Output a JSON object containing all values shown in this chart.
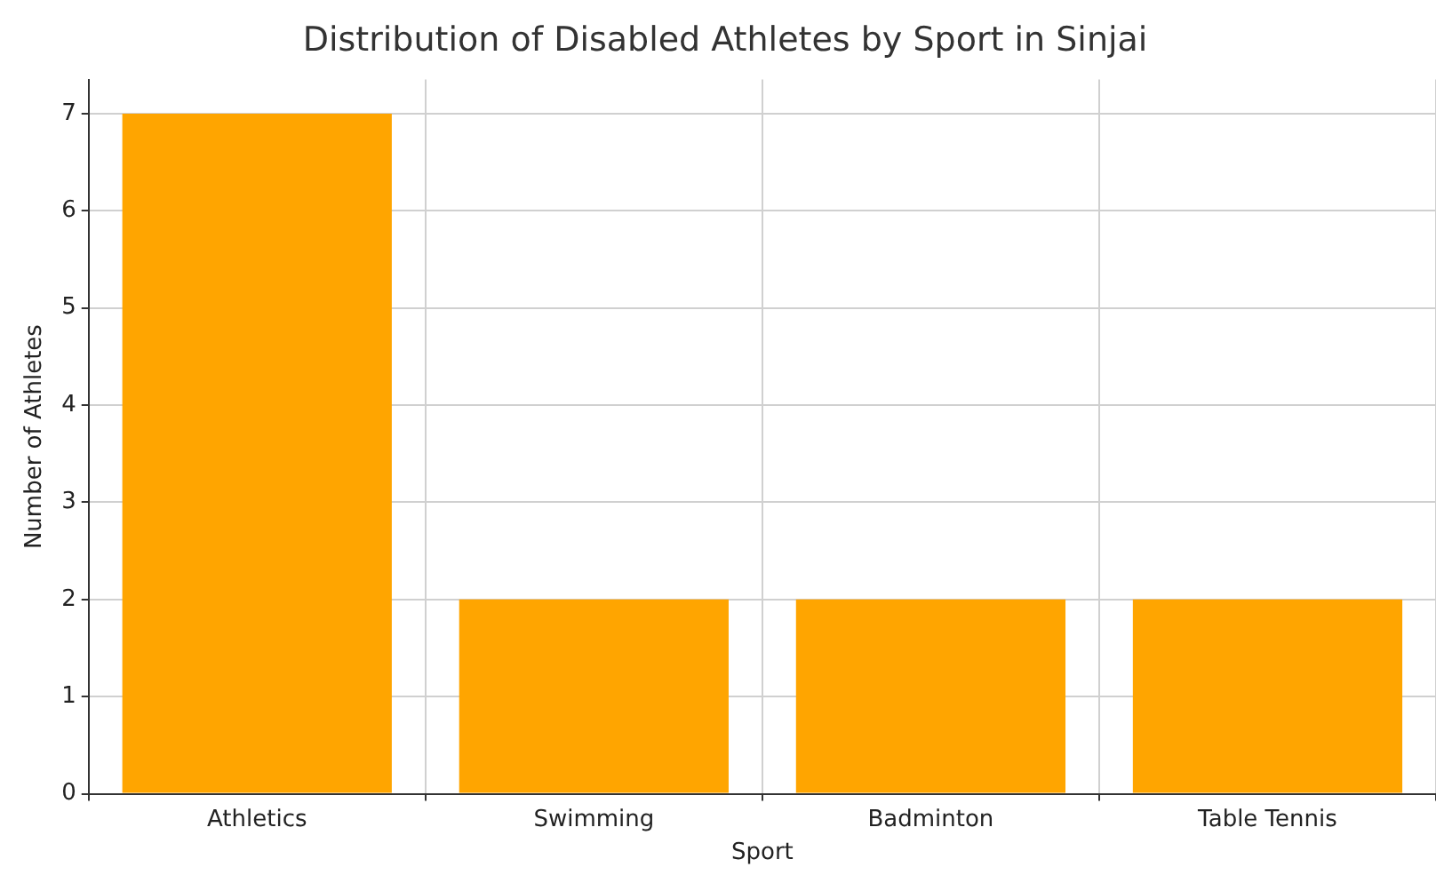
{
  "chart_data": {
    "type": "bar",
    "title": "Distribution of Disabled Athletes by Sport in Sinjai",
    "xlabel": "Sport",
    "ylabel": "Number of Athletes",
    "categories": [
      "Athletics",
      "Swimming",
      "Badminton",
      "Table Tennis"
    ],
    "values": [
      7,
      2,
      2,
      2
    ],
    "color": "#ffa500",
    "ylim": [
      0,
      7.35
    ],
    "yticks": [
      0,
      1,
      2,
      3,
      4,
      5,
      6,
      7
    ],
    "grid": true
  }
}
